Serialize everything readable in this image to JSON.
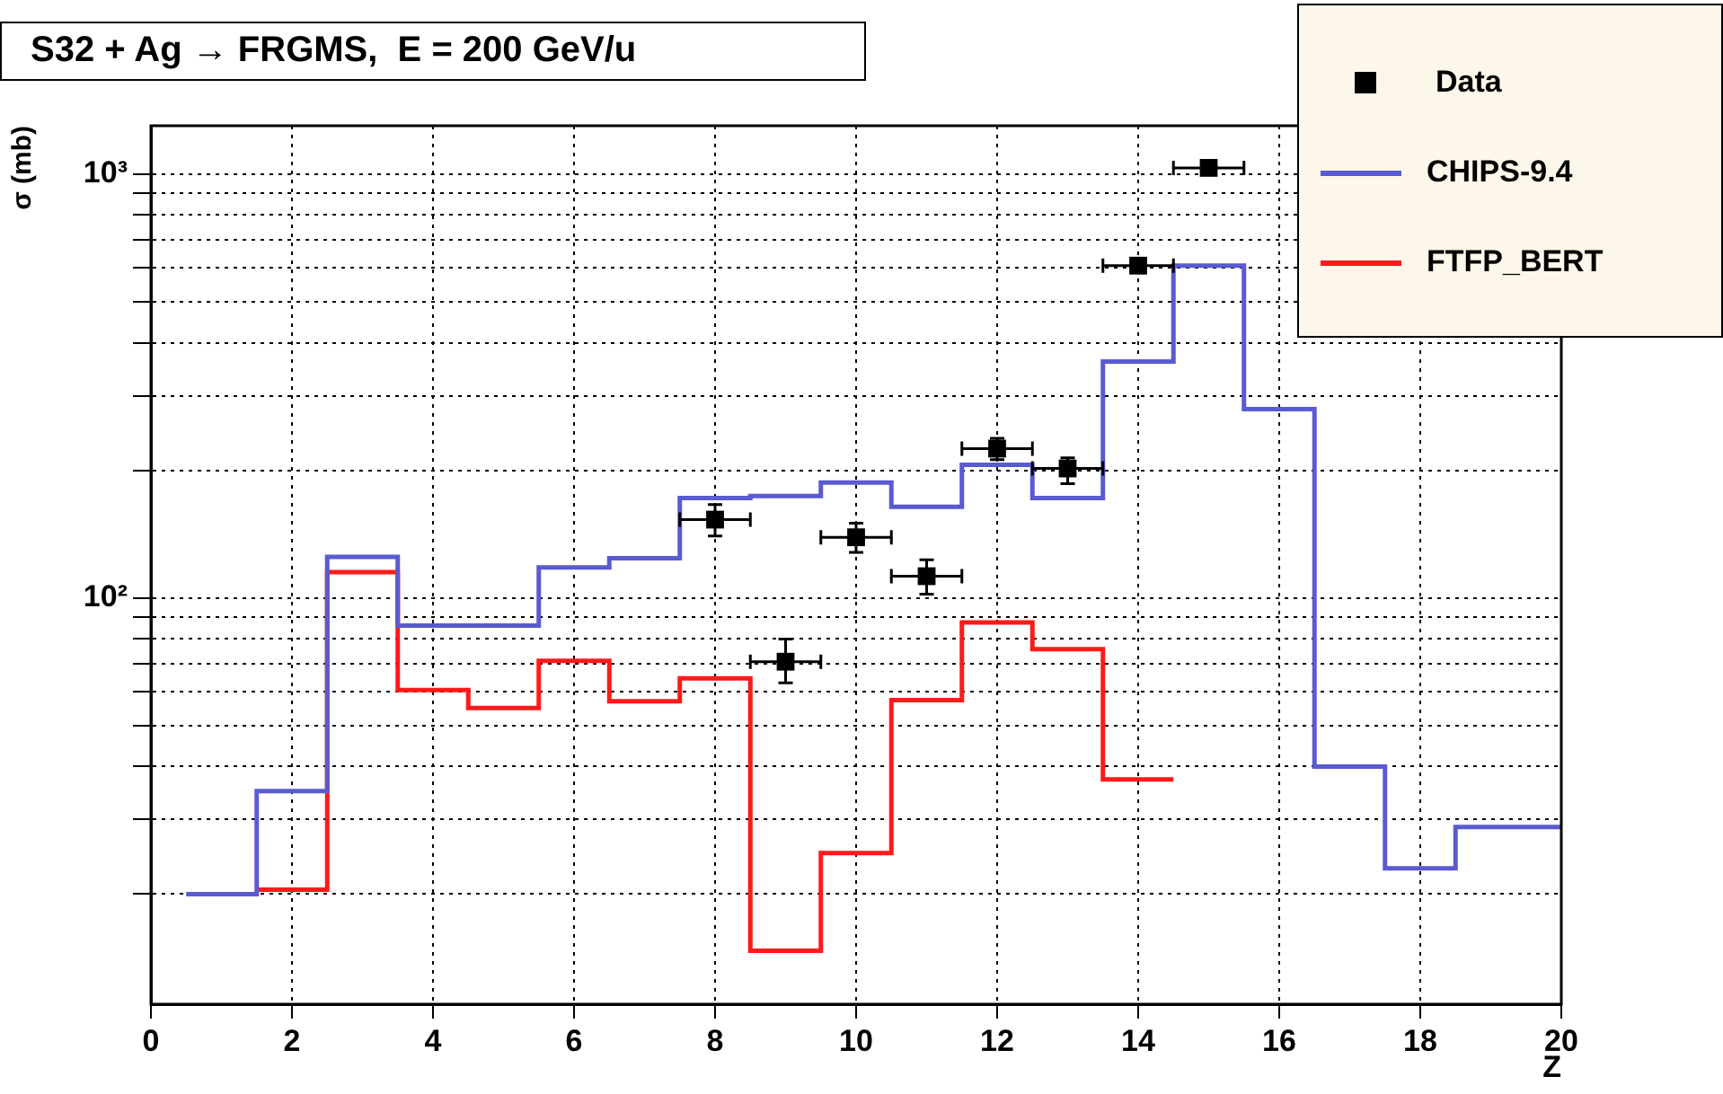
{
  "chart_data": {
    "type": "step",
    "title": "S32 + Ag → FRGMS,  E = 200 GeV/u",
    "xlabel": "Z",
    "ylabel": "σ (mb)",
    "log": "y",
    "grid": true,
    "legend": "top right",
    "xlim": [
      0,
      20
    ],
    "xticks": [
      0,
      2,
      4,
      6,
      8,
      10,
      12,
      14,
      16,
      18,
      20
    ],
    "ylim": [
      11,
      1300
    ],
    "yticks": [
      {
        "value": 20,
        "label": null
      },
      {
        "value": 30,
        "label": null
      },
      {
        "value": 40,
        "label": null
      },
      {
        "value": 50,
        "label": null
      },
      {
        "value": 60,
        "label": null
      },
      {
        "value": 70,
        "label": null
      },
      {
        "value": 80,
        "label": null
      },
      {
        "value": 90,
        "label": null
      },
      {
        "value": 100,
        "label": "10²"
      },
      {
        "value": 200,
        "label": null
      },
      {
        "value": 300,
        "label": null
      },
      {
        "value": 400,
        "label": null
      },
      {
        "value": 500,
        "label": null
      },
      {
        "value": 600,
        "label": null
      },
      {
        "value": 700,
        "label": null
      },
      {
        "value": 800,
        "label": null
      },
      {
        "value": 900,
        "label": null
      },
      {
        "value": 1000,
        "label": "10³"
      }
    ],
    "series": [
      {
        "name": "Data",
        "type": "scatter",
        "marker": "square",
        "color": "#000000",
        "x": [
          8,
          9,
          10,
          11,
          12,
          13,
          14,
          15
        ],
        "values": [
          153,
          70.7,
          139,
          112.5,
          225,
          202,
          608,
          1034
        ],
        "errors": [
          [
            140,
            166
          ],
          [
            63,
            80
          ],
          [
            128,
            150
          ],
          [
            102,
            123
          ],
          [
            212,
            238
          ],
          [
            186,
            214
          ],
          null,
          null
        ],
        "xerrors": [
          0.5,
          0.5,
          0.5,
          0.5,
          0.5,
          0.5,
          0.5,
          0.5
        ]
      },
      {
        "name": "CHIPS-9.4",
        "color": "#5a5ad2",
        "x": [
          0.5,
          1.5,
          2.5,
          3.5,
          4.5,
          5.5,
          6.5,
          7.5,
          8.5,
          9.5,
          10.5,
          11.5,
          12.5,
          13.5,
          14.5,
          15.5,
          16.5,
          17.5,
          18.5,
          19.5,
          20
        ],
        "values": [
          20,
          35,
          125,
          86,
          86,
          118,
          124,
          172,
          174,
          187,
          164,
          206,
          172,
          361,
          608,
          279,
          40,
          23,
          28.8,
          28.8,
          28.8
        ]
      },
      {
        "name": "FTFP_BERT",
        "color": "#ff1a1a",
        "x": [
          1.5,
          2.5,
          3.5,
          4.5,
          5.5,
          6.5,
          7.5,
          8.5,
          9.5,
          10.5,
          11.5,
          12.5,
          13.5,
          14.5
        ],
        "values": [
          20.5,
          115,
          60.6,
          55,
          71,
          57,
          64.6,
          14.7,
          25,
          57.4,
          87.5,
          75.7,
          37.3,
          37.3
        ]
      }
    ]
  }
}
